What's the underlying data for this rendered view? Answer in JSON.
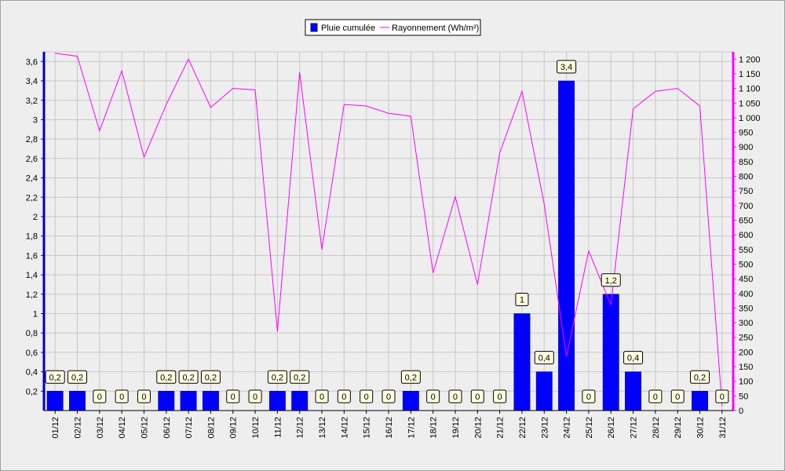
{
  "legend": {
    "bar_label": "Pluie cumulée",
    "line_label": "Rayonnement (Wh/m²)"
  },
  "chart_data": {
    "type": "bar",
    "categories": [
      "01/12",
      "02/12",
      "03/12",
      "04/12",
      "05/12",
      "06/12",
      "07/12",
      "08/12",
      "09/12",
      "10/12",
      "11/12",
      "12/12",
      "13/12",
      "14/12",
      "15/12",
      "16/12",
      "17/12",
      "18/12",
      "19/12",
      "20/12",
      "21/12",
      "22/12",
      "23/12",
      "24/12",
      "25/12",
      "26/12",
      "27/12",
      "28/12",
      "29/12",
      "30/12",
      "31/12"
    ],
    "series": [
      {
        "name": "Pluie cumulée",
        "type": "bar",
        "axis": "left",
        "color": "#0000ff",
        "values": [
          0.2,
          0.2,
          0,
          0,
          0,
          0.2,
          0.2,
          0.2,
          0,
          0,
          0.2,
          0.2,
          0,
          0,
          0,
          0,
          0.2,
          0,
          0,
          0,
          0,
          1,
          0.4,
          3.4,
          0,
          1.2,
          0.4,
          0,
          0,
          0.2,
          0
        ],
        "labels": [
          "0,2",
          "0,2",
          "0",
          "0",
          "0",
          "0,2",
          "0,2",
          "0,2",
          "0",
          "0",
          "0,2",
          "0,2",
          "0",
          "0",
          "0",
          "0",
          "0,2",
          "0",
          "0",
          "0",
          "0",
          "1",
          "0,4",
          "3,4",
          "0",
          "1,2",
          "0,4",
          "0",
          "0",
          "0,2",
          "0"
        ]
      },
      {
        "name": "Rayonnement (Wh/m²)",
        "type": "line",
        "axis": "right",
        "color": "#ff00ff",
        "values": [
          1220,
          1210,
          955,
          1160,
          865,
          1045,
          1200,
          1035,
          1100,
          1095,
          270,
          1155,
          550,
          1045,
          1040,
          1015,
          1005,
          470,
          730,
          430,
          880,
          1090,
          705,
          185,
          545,
          360,
          1030,
          1090,
          1100,
          1040,
          15
        ]
      }
    ],
    "y_left": {
      "ylim": [
        0,
        3.7
      ],
      "ticks": [
        0.2,
        0.4,
        0.6,
        0.8,
        1,
        1.2,
        1.4,
        1.6,
        1.8,
        2,
        2.2,
        2.4,
        2.6,
        2.8,
        3,
        3.2,
        3.4,
        3.6
      ],
      "tick_labels": [
        "0,2",
        "0,4",
        "0,6",
        "0,8",
        "1",
        "1,2",
        "1,4",
        "1,6",
        "1,8",
        "2",
        "2,2",
        "2,4",
        "2,6",
        "2,8",
        "3",
        "3,2",
        "3,4",
        "3,6"
      ]
    },
    "y_right": {
      "ylim": [
        0,
        1225
      ],
      "ticks": [
        0,
        50,
        100,
        150,
        200,
        250,
        300,
        350,
        400,
        450,
        500,
        550,
        600,
        650,
        700,
        750,
        800,
        850,
        900,
        950,
        1000,
        1050,
        1100,
        1150,
        1200
      ],
      "tick_labels": [
        "0",
        "50",
        "100",
        "150",
        "200",
        "250",
        "300",
        "350",
        "400",
        "450",
        "500",
        "550",
        "600",
        "650",
        "700",
        "750",
        "800",
        "850",
        "900",
        "950",
        "1 000",
        "1 050",
        "1 100",
        "1 150",
        "1 200"
      ]
    },
    "grid": true,
    "legend_position": "top-center",
    "colors": {
      "background": "#eeeeee",
      "plot_background": "#eeeeee",
      "grid": "#c8c8c8",
      "left_axis": "#0000cc",
      "right_axis": "#ff00ff",
      "label_box": "#ffffe0"
    }
  }
}
